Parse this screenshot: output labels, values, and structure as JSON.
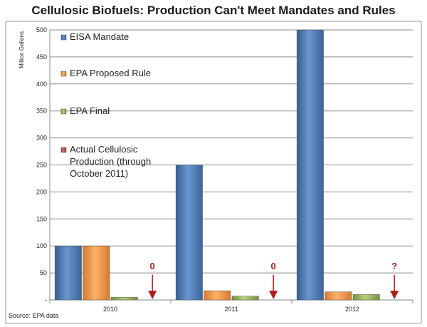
{
  "chart_data": {
    "type": "bar",
    "title": "Cellulosic Biofuels: Production Can't Meet Mandates and Rules",
    "ylabel": "Million Gallons",
    "xlabel": "",
    "categories": [
      "2010",
      "2011",
      "2012"
    ],
    "ylim": [
      0,
      500
    ],
    "yticks": [
      "-",
      "50",
      "100",
      "150",
      "200",
      "250",
      "300",
      "350",
      "400",
      "450",
      "500"
    ],
    "grid": true,
    "legend_position": "left-inside",
    "series": [
      {
        "name": "EISA Mandate",
        "values": [
          100,
          250,
          500
        ],
        "color": "#4f81bd"
      },
      {
        "name": "EPA Proposed Rule",
        "values": [
          100,
          17,
          15
        ],
        "color": "#f79646"
      },
      {
        "name": "EPA Final",
        "values": [
          5,
          7,
          10
        ],
        "color": "#9bbb59"
      },
      {
        "name": "Actual Cellulosic Production (through October 2011)",
        "values": [
          0,
          0,
          null
        ],
        "color": "#c0504d"
      }
    ],
    "annotations": [
      "0",
      "0",
      "?"
    ],
    "source": "Source: EPA data"
  }
}
